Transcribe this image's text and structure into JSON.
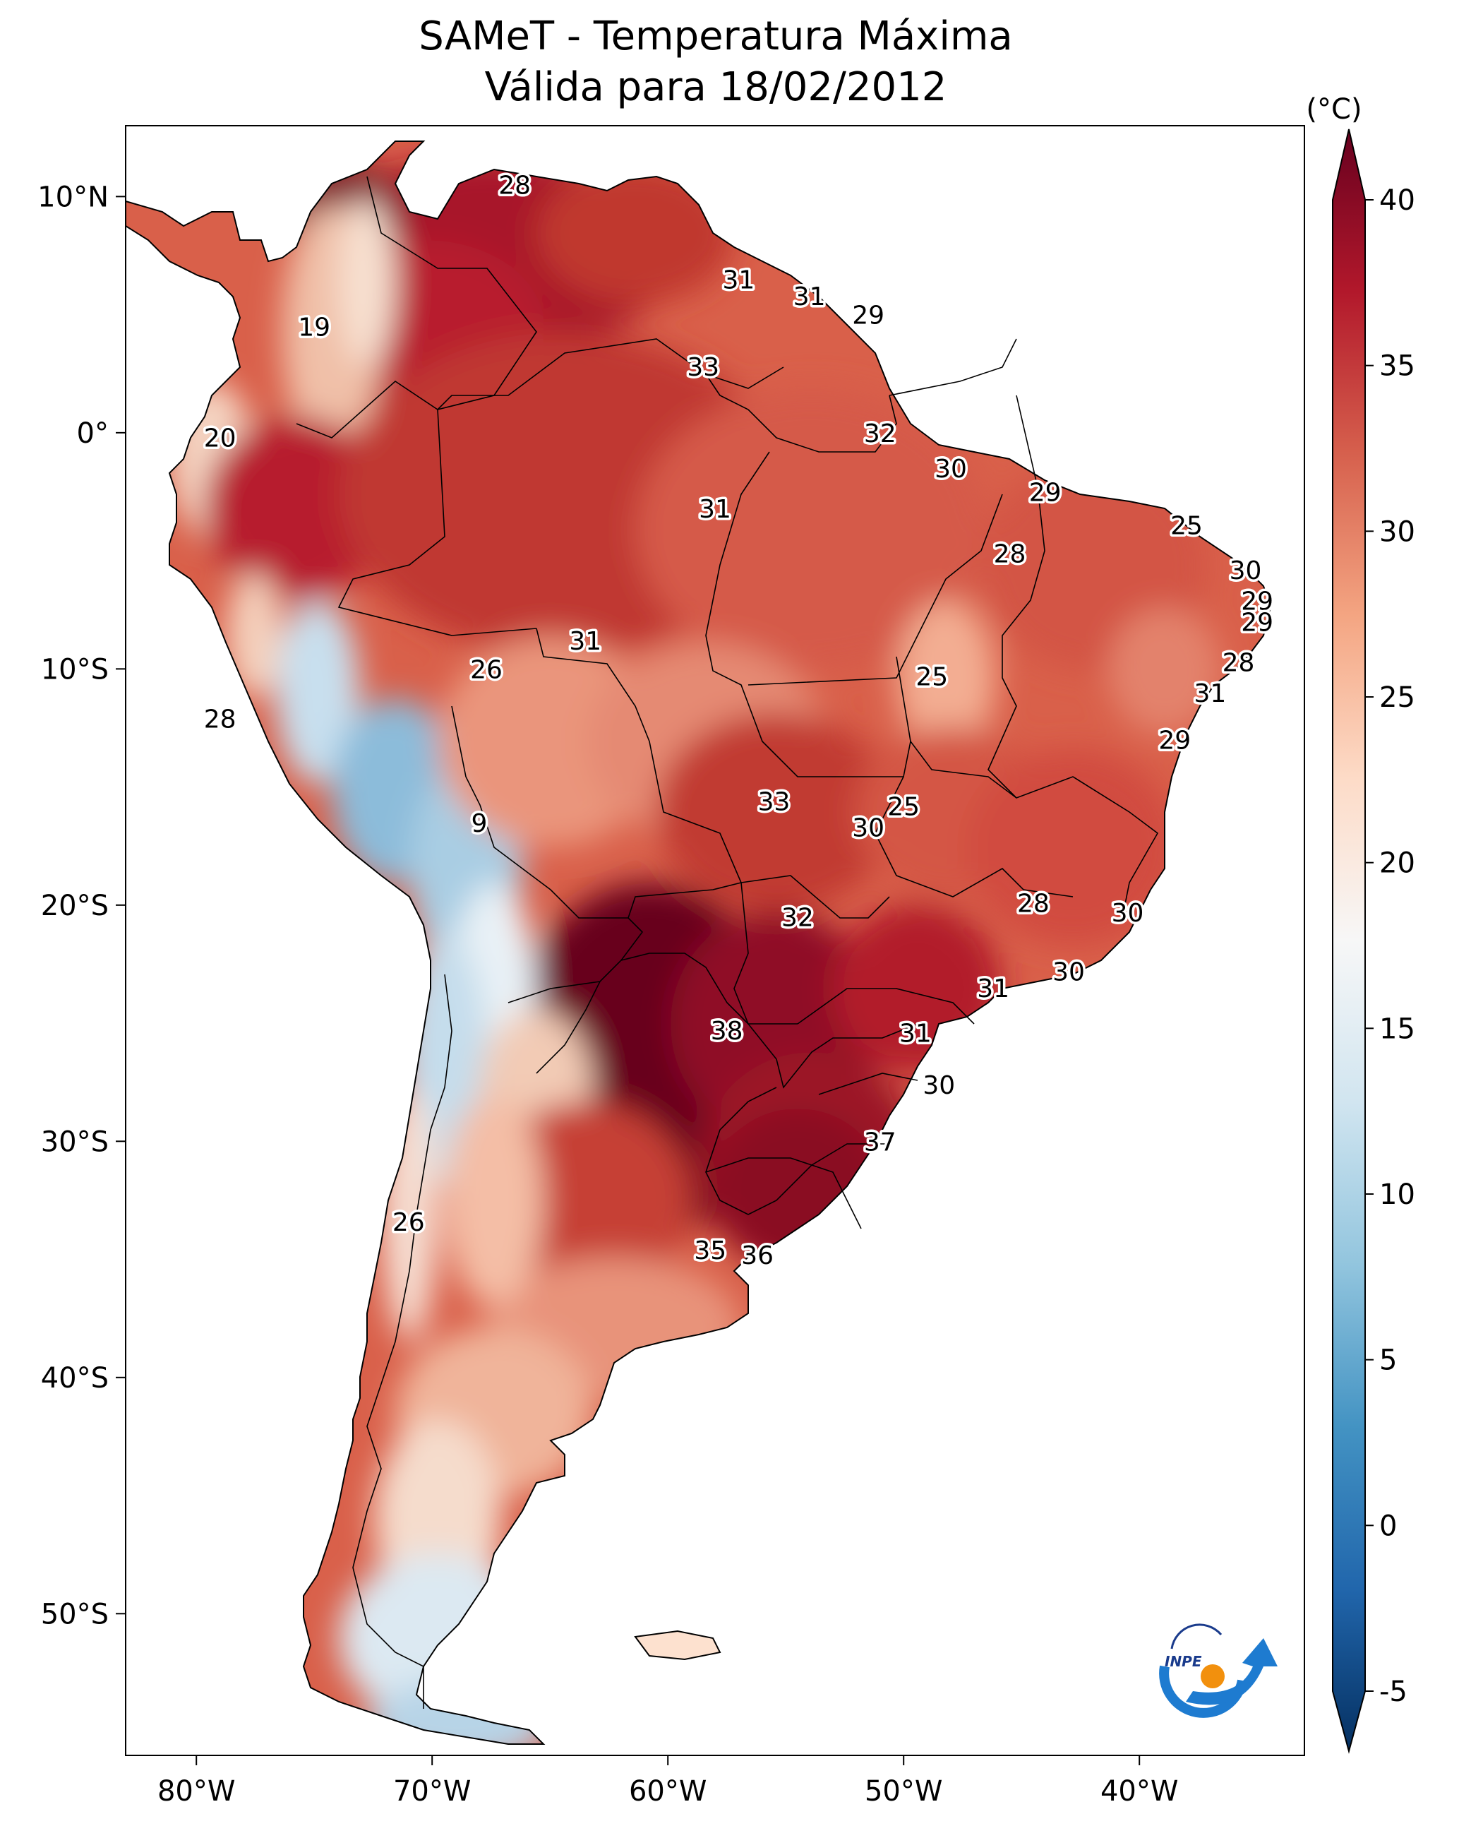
{
  "title": {
    "line1": "SAMeT - Temperatura Máxima",
    "line2": "Válida para 18/02/2012"
  },
  "map": {
    "lon_range": [
      -83,
      -33
    ],
    "lat_range": [
      -56,
      13
    ]
  },
  "axes": {
    "x_ticks": [
      {
        "value": -80,
        "label": "80°W"
      },
      {
        "value": -70,
        "label": "70°W"
      },
      {
        "value": -60,
        "label": "60°W"
      },
      {
        "value": -50,
        "label": "50°W"
      },
      {
        "value": -40,
        "label": "40°W"
      }
    ],
    "y_ticks": [
      {
        "value": 10,
        "label": "10°N"
      },
      {
        "value": 0,
        "label": "0°"
      },
      {
        "value": -10,
        "label": "10°S"
      },
      {
        "value": -20,
        "label": "20°S"
      },
      {
        "value": -30,
        "label": "30°S"
      },
      {
        "value": -40,
        "label": "40°S"
      },
      {
        "value": -50,
        "label": "50°S"
      }
    ]
  },
  "colorbar": {
    "unit": "(°C)",
    "min": -7,
    "max": 42,
    "ticks": [
      -5,
      0,
      5,
      10,
      15,
      20,
      25,
      30,
      35,
      40
    ],
    "colors": [
      "#053061",
      "#2166ac",
      "#4393c3",
      "#92c5de",
      "#d1e5f0",
      "#f7f7f7",
      "#fddbc7",
      "#f4a582",
      "#d6604d",
      "#b2182b",
      "#67001f"
    ],
    "colormap": "RdBu_r"
  },
  "stations": [
    {
      "lon": -66.5,
      "lat": 10.5,
      "value": "28"
    },
    {
      "lon": -75.0,
      "lat": 4.5,
      "value": "19"
    },
    {
      "lon": -57.0,
      "lat": 6.5,
      "value": "31"
    },
    {
      "lon": -54.0,
      "lat": 5.8,
      "value": "31"
    },
    {
      "lon": -51.5,
      "lat": 5.0,
      "value": "29"
    },
    {
      "lon": -58.5,
      "lat": 2.8,
      "value": "33"
    },
    {
      "lon": -51.0,
      "lat": 0.0,
      "value": "32"
    },
    {
      "lon": -79.0,
      "lat": -0.2,
      "value": "20"
    },
    {
      "lon": -48.0,
      "lat": -1.5,
      "value": "30"
    },
    {
      "lon": -58.0,
      "lat": -3.2,
      "value": "31"
    },
    {
      "lon": -44.0,
      "lat": -2.5,
      "value": "29"
    },
    {
      "lon": -38.0,
      "lat": -3.9,
      "value": "25"
    },
    {
      "lon": -45.5,
      "lat": -5.1,
      "value": "28"
    },
    {
      "lon": -35.5,
      "lat": -5.8,
      "value": "30"
    },
    {
      "lon": -35.0,
      "lat": -7.1,
      "value": "29"
    },
    {
      "lon": -35.0,
      "lat": -8.0,
      "value": "29"
    },
    {
      "lon": -63.5,
      "lat": -8.8,
      "value": "31"
    },
    {
      "lon": -35.8,
      "lat": -9.7,
      "value": "28"
    },
    {
      "lon": -67.7,
      "lat": -10.0,
      "value": "26"
    },
    {
      "lon": -48.8,
      "lat": -10.3,
      "value": "25"
    },
    {
      "lon": -37.0,
      "lat": -11.0,
      "value": "31"
    },
    {
      "lon": -79.0,
      "lat": -12.1,
      "value": "28"
    },
    {
      "lon": -38.5,
      "lat": -13.0,
      "value": "29"
    },
    {
      "lon": -55.5,
      "lat": -15.6,
      "value": "33"
    },
    {
      "lon": -50.0,
      "lat": -15.8,
      "value": "25"
    },
    {
      "lon": -68.0,
      "lat": -16.5,
      "value": "9"
    },
    {
      "lon": -51.5,
      "lat": -16.7,
      "value": "30"
    },
    {
      "lon": -44.5,
      "lat": -19.9,
      "value": "28"
    },
    {
      "lon": -40.5,
      "lat": -20.3,
      "value": "30"
    },
    {
      "lon": -54.5,
      "lat": -20.5,
      "value": "32"
    },
    {
      "lon": -43.0,
      "lat": -22.8,
      "value": "30"
    },
    {
      "lon": -46.2,
      "lat": -23.5,
      "value": "31"
    },
    {
      "lon": -57.5,
      "lat": -25.3,
      "value": "38"
    },
    {
      "lon": -49.5,
      "lat": -25.4,
      "value": "31"
    },
    {
      "lon": -48.5,
      "lat": -27.6,
      "value": "30"
    },
    {
      "lon": -51.0,
      "lat": -30.0,
      "value": "37"
    },
    {
      "lon": -71.0,
      "lat": -33.4,
      "value": "26"
    },
    {
      "lon": -58.2,
      "lat": -34.6,
      "value": "35"
    },
    {
      "lon": -56.2,
      "lat": -34.8,
      "value": "36"
    }
  ]
}
